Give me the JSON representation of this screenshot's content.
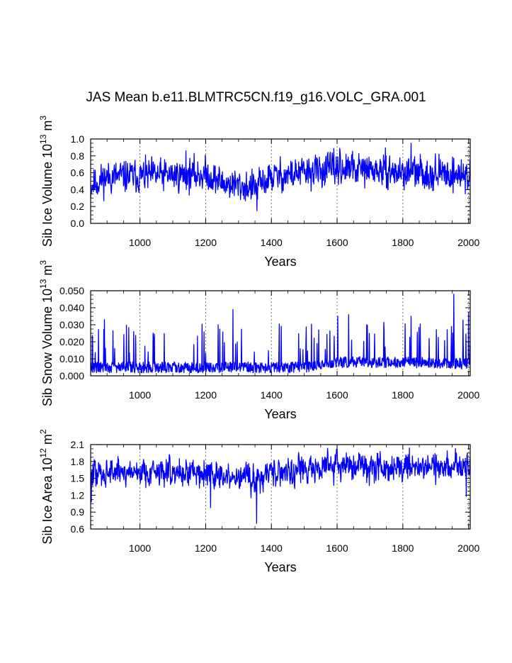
{
  "title": "JAS Mean b.e11.BLMTRC5CN.f19_g16.VOLC_GRA.001",
  "colors": {
    "series": "#0000ff",
    "grid": "#555555",
    "axis": "#000000"
  },
  "chart_data": [
    {
      "type": "line",
      "ylabel": "Sib Ice Volume 10",
      "ylabel_exp": "13",
      "ylabel_unit": " m",
      "ylabel_unit_exp": "3",
      "xlabel": "Years",
      "xlim": [
        850,
        2005
      ],
      "ylim": [
        0.0,
        1.0
      ],
      "xticks": [
        "1000",
        "1200",
        "1400",
        "1600",
        "1800",
        "2000"
      ],
      "xtick_values": [
        1000,
        1200,
        1400,
        1600,
        1800,
        2000
      ],
      "yticks": [
        "0.0",
        "0.2",
        "0.4",
        "0.6",
        "0.8",
        "1.0"
      ],
      "ytick_values": [
        0.0,
        0.2,
        0.4,
        0.6,
        0.8,
        1.0
      ],
      "series": {
        "name": "Sib Ice Volume",
        "gen": {
          "seed": 11,
          "base": 0.55,
          "amp": 0.12,
          "floor": 0.12,
          "ceil": 0.96,
          "drift": [
            [
              850,
              0.45
            ],
            [
              900,
              0.55
            ],
            [
              1200,
              0.58
            ],
            [
              1250,
              0.48
            ],
            [
              1350,
              0.42
            ],
            [
              1400,
              0.55
            ],
            [
              1600,
              0.65
            ],
            [
              1700,
              0.63
            ],
            [
              1800,
              0.6
            ],
            [
              2005,
              0.58
            ]
          ]
        },
        "x": [
          850,
          1140,
          1356,
          1608,
          1825,
          1990
        ],
        "values": [
          0.3,
          0.86,
          0.15,
          0.89,
          0.95,
          0.35
        ]
      }
    },
    {
      "type": "line",
      "ylabel": "Sib Snow Volume 10",
      "ylabel_exp": "13",
      "ylabel_unit": " m",
      "ylabel_unit_exp": "3",
      "xlabel": "Years",
      "xlim": [
        850,
        2005
      ],
      "ylim": [
        0.0,
        0.05
      ],
      "xticks": [
        "1000",
        "1200",
        "1400",
        "1600",
        "1800",
        "2000"
      ],
      "xtick_values": [
        1000,
        1200,
        1400,
        1600,
        1800,
        2000
      ],
      "yticks": [
        "0.000",
        "0.010",
        "0.020",
        "0.030",
        "0.040",
        "0.050"
      ],
      "ytick_values": [
        0.0,
        0.01,
        0.02,
        0.03,
        0.04,
        0.05
      ],
      "series": {
        "name": "Sib Snow Volume",
        "gen": {
          "seed": 29,
          "base": 0.005,
          "amp": 0.004,
          "floor": 0.0015,
          "ceil": 0.049,
          "spiky": true,
          "drift": [
            [
              850,
              0.005
            ],
            [
              1200,
              0.005
            ],
            [
              1500,
              0.005
            ],
            [
              1600,
              0.008
            ],
            [
              1800,
              0.008
            ],
            [
              2005,
              0.007
            ]
          ]
        },
        "x": [
          892,
          1283,
          1602,
          1635,
          1825,
          1955,
          2000
        ],
        "values": [
          0.033,
          0.039,
          0.035,
          0.036,
          0.035,
          0.048,
          0.037
        ]
      }
    },
    {
      "type": "line",
      "ylabel": "Sib Ice Area 10",
      "ylabel_exp": "12",
      "ylabel_unit": " m",
      "ylabel_unit_exp": "2",
      "xlabel": "Years",
      "xlim": [
        850,
        2005
      ],
      "ylim": [
        0.6,
        2.1
      ],
      "xticks": [
        "1000",
        "1200",
        "1400",
        "1600",
        "1800",
        "2000"
      ],
      "xtick_values": [
        1000,
        1200,
        1400,
        1600,
        1800,
        2000
      ],
      "yticks": [
        "0.6",
        "0.9",
        "1.2",
        "1.5",
        "1.8",
        "2.1"
      ],
      "ytick_values": [
        0.6,
        0.9,
        1.2,
        1.5,
        1.8,
        2.1
      ],
      "series": {
        "name": "Sib Ice Area",
        "gen": {
          "seed": 47,
          "base": 1.65,
          "amp": 0.16,
          "floor": 0.95,
          "ceil": 2.05,
          "drift": [
            [
              850,
              1.55
            ],
            [
              900,
              1.62
            ],
            [
              1200,
              1.62
            ],
            [
              1250,
              1.5
            ],
            [
              1350,
              1.5
            ],
            [
              1400,
              1.62
            ],
            [
              1600,
              1.72
            ],
            [
              1800,
              1.72
            ],
            [
              2005,
              1.7
            ]
          ]
        },
        "x": [
          852,
          1215,
          1355,
          1600,
          1820,
          1960,
          1993
        ],
        "values": [
          1.08,
          0.98,
          0.7,
          2.02,
          2.04,
          2.03,
          1.18
        ]
      }
    }
  ]
}
